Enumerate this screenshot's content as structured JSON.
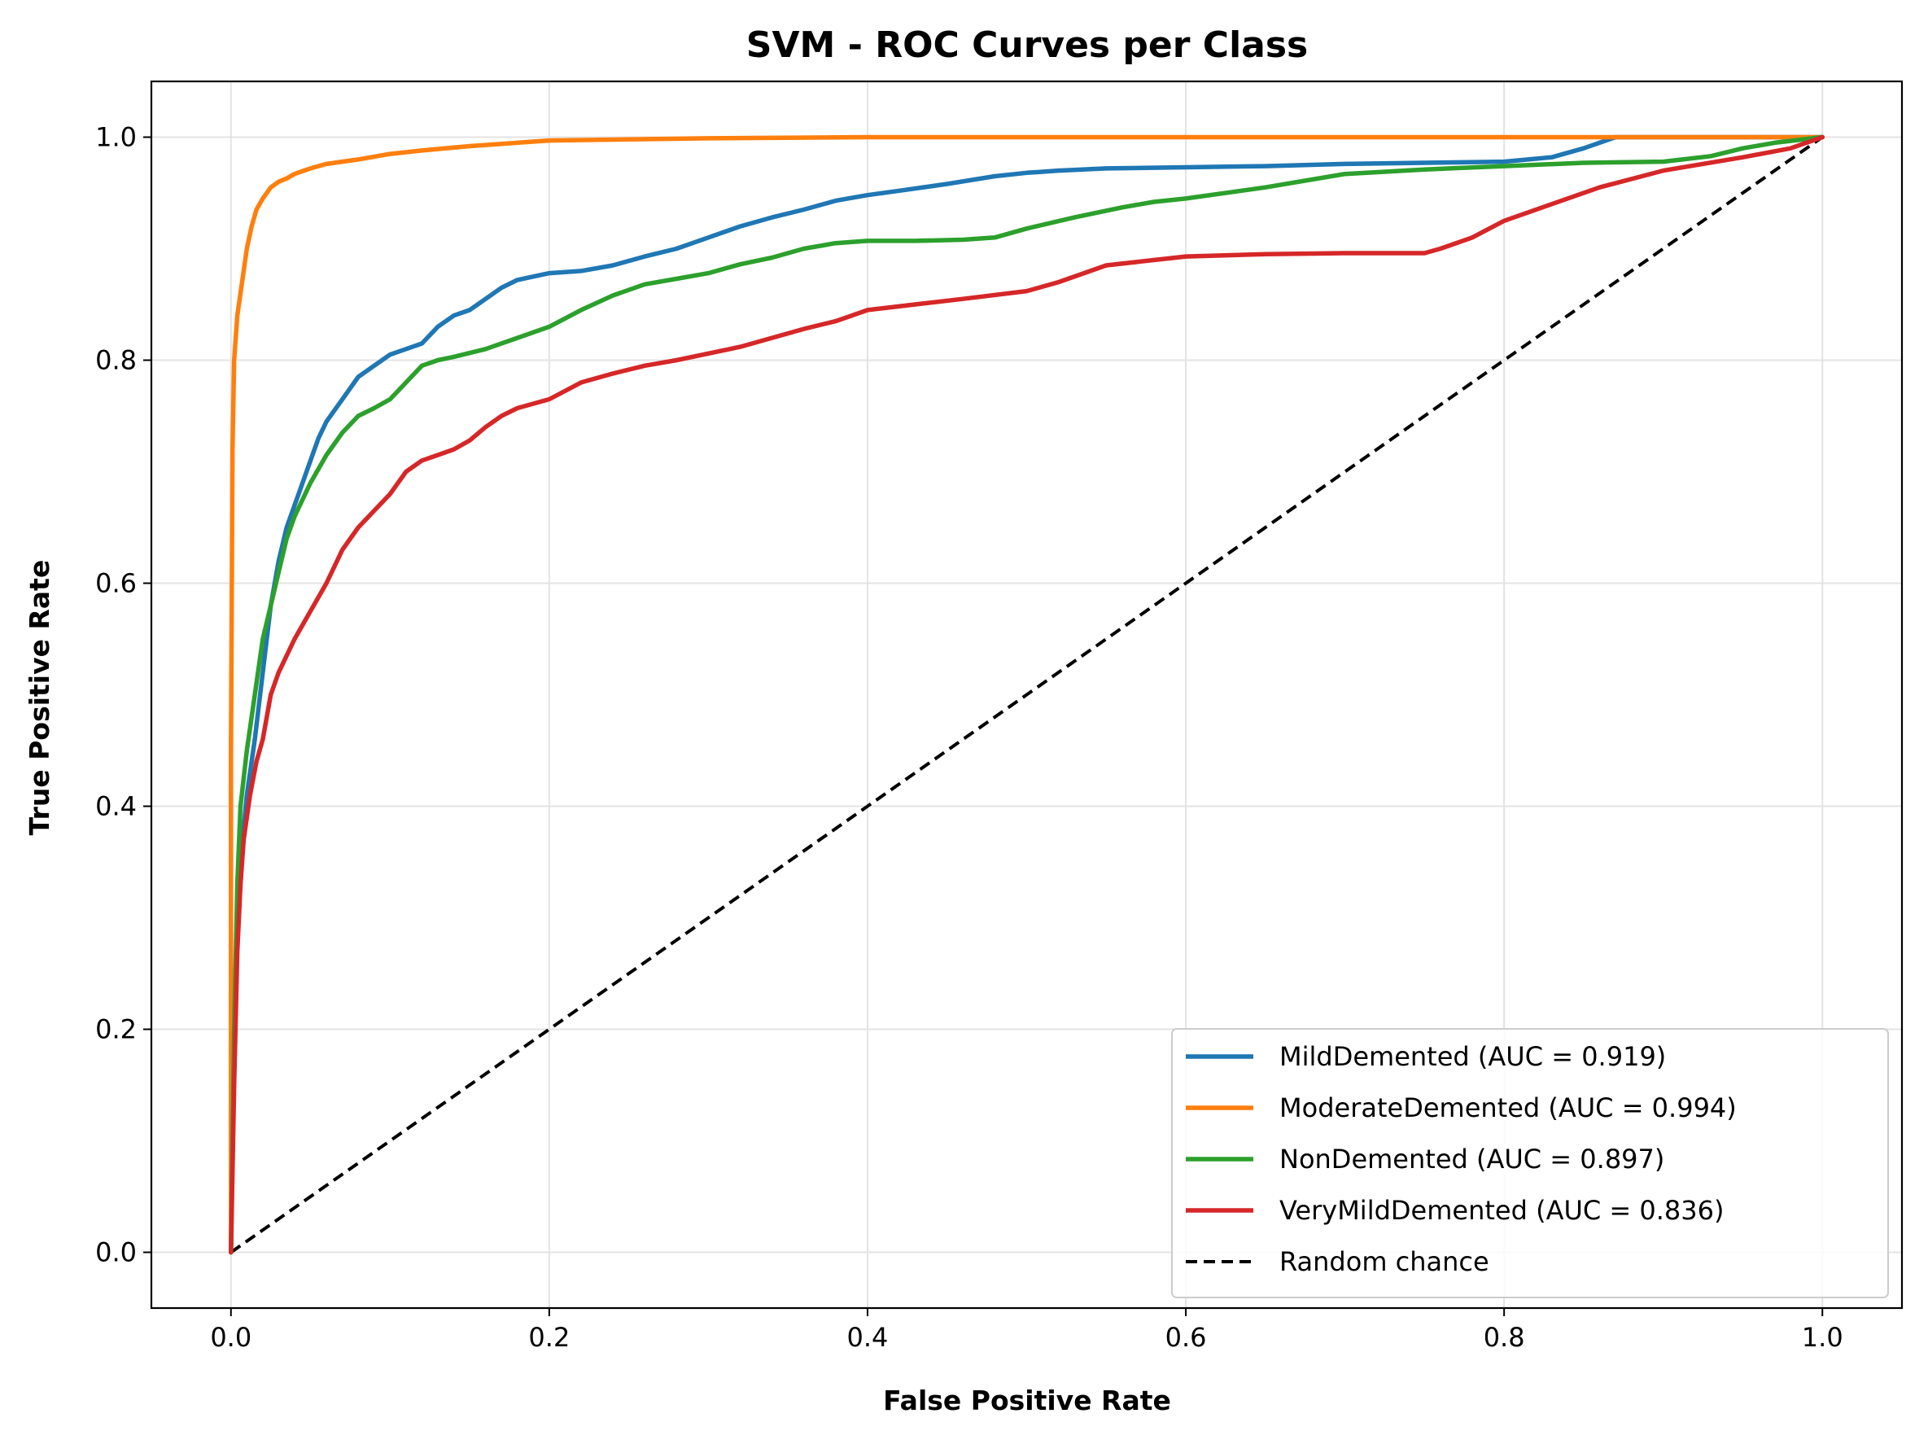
{
  "chart_data": {
    "type": "line",
    "title": "SVM - ROC Curves per Class",
    "xlabel": "False Positive Rate",
    "ylabel": "True Positive Rate",
    "xlim": [
      -0.05,
      1.05
    ],
    "ylim": [
      -0.05,
      1.05
    ],
    "xticks": [
      "0.0",
      "0.2",
      "0.4",
      "0.6",
      "0.8",
      "1.0"
    ],
    "yticks": [
      "0.0",
      "0.2",
      "0.4",
      "0.6",
      "0.8",
      "1.0"
    ],
    "grid": true,
    "legend_position": "lower-right",
    "series": [
      {
        "name": "MildDemented (AUC = 0.919)",
        "color": "#1f77b4",
        "x": [
          0,
          0.002,
          0.004,
          0.006,
          0.01,
          0.015,
          0.02,
          0.025,
          0.03,
          0.035,
          0.04,
          0.045,
          0.05,
          0.055,
          0.06,
          0.07,
          0.075,
          0.08,
          0.09,
          0.1,
          0.11,
          0.12,
          0.13,
          0.14,
          0.15,
          0.16,
          0.17,
          0.18,
          0.2,
          0.22,
          0.24,
          0.26,
          0.28,
          0.3,
          0.32,
          0.34,
          0.36,
          0.38,
          0.4,
          0.42,
          0.45,
          0.48,
          0.5,
          0.52,
          0.55,
          0.6,
          0.65,
          0.7,
          0.75,
          0.8,
          0.83,
          0.85,
          0.87,
          1.0
        ],
        "y": [
          0,
          0.2,
          0.3,
          0.35,
          0.41,
          0.46,
          0.52,
          0.58,
          0.62,
          0.65,
          0.67,
          0.69,
          0.71,
          0.73,
          0.745,
          0.765,
          0.775,
          0.785,
          0.795,
          0.805,
          0.81,
          0.815,
          0.83,
          0.84,
          0.845,
          0.855,
          0.865,
          0.872,
          0.878,
          0.88,
          0.885,
          0.893,
          0.9,
          0.91,
          0.92,
          0.928,
          0.935,
          0.943,
          0.948,
          0.952,
          0.958,
          0.965,
          0.968,
          0.97,
          0.972,
          0.973,
          0.974,
          0.976,
          0.977,
          0.978,
          0.982,
          0.99,
          1.0,
          1.0
        ]
      },
      {
        "name": "ModerateDemented (AUC = 0.994)",
        "color": "#ff7f0e",
        "x": [
          0,
          0.0,
          0.001,
          0.002,
          0.004,
          0.006,
          0.008,
          0.01,
          0.013,
          0.016,
          0.02,
          0.025,
          0.03,
          0.035,
          0.04,
          0.05,
          0.06,
          0.07,
          0.08,
          0.1,
          0.12,
          0.15,
          0.2,
          0.3,
          0.4,
          1.0
        ],
        "y": [
          0,
          0.45,
          0.72,
          0.8,
          0.84,
          0.86,
          0.88,
          0.9,
          0.92,
          0.935,
          0.945,
          0.955,
          0.96,
          0.963,
          0.967,
          0.972,
          0.976,
          0.978,
          0.98,
          0.985,
          0.988,
          0.992,
          0.997,
          0.999,
          1.0,
          1.0
        ]
      },
      {
        "name": "NonDemented (AUC = 0.897)",
        "color": "#2ca02c",
        "x": [
          0,
          0.002,
          0.004,
          0.006,
          0.01,
          0.015,
          0.02,
          0.025,
          0.03,
          0.035,
          0.04,
          0.05,
          0.06,
          0.07,
          0.08,
          0.09,
          0.1,
          0.11,
          0.12,
          0.13,
          0.14,
          0.16,
          0.18,
          0.2,
          0.22,
          0.24,
          0.26,
          0.28,
          0.3,
          0.32,
          0.34,
          0.36,
          0.38,
          0.4,
          0.43,
          0.46,
          0.48,
          0.5,
          0.53,
          0.56,
          0.58,
          0.6,
          0.65,
          0.7,
          0.75,
          0.8,
          0.85,
          0.9,
          0.93,
          0.95,
          0.97,
          1.0
        ],
        "y": [
          0,
          0.2,
          0.33,
          0.4,
          0.45,
          0.5,
          0.55,
          0.58,
          0.61,
          0.64,
          0.66,
          0.69,
          0.715,
          0.735,
          0.75,
          0.757,
          0.765,
          0.78,
          0.795,
          0.8,
          0.803,
          0.81,
          0.82,
          0.83,
          0.845,
          0.858,
          0.868,
          0.873,
          0.878,
          0.886,
          0.892,
          0.9,
          0.905,
          0.907,
          0.907,
          0.908,
          0.91,
          0.918,
          0.928,
          0.937,
          0.942,
          0.945,
          0.955,
          0.967,
          0.971,
          0.974,
          0.977,
          0.978,
          0.983,
          0.99,
          0.995,
          1.0
        ]
      },
      {
        "name": "VeryMildDemented (AUC = 0.836)",
        "color": "#d62728",
        "x": [
          0,
          0.002,
          0.004,
          0.006,
          0.008,
          0.012,
          0.016,
          0.02,
          0.025,
          0.03,
          0.04,
          0.05,
          0.06,
          0.07,
          0.08,
          0.09,
          0.1,
          0.11,
          0.12,
          0.13,
          0.14,
          0.15,
          0.16,
          0.17,
          0.18,
          0.2,
          0.22,
          0.24,
          0.26,
          0.28,
          0.3,
          0.32,
          0.34,
          0.36,
          0.38,
          0.4,
          0.43,
          0.46,
          0.5,
          0.52,
          0.55,
          0.6,
          0.65,
          0.7,
          0.75,
          0.76,
          0.78,
          0.8,
          0.83,
          0.86,
          0.9,
          0.95,
          0.98,
          1.0
        ],
        "y": [
          0,
          0.15,
          0.27,
          0.33,
          0.37,
          0.41,
          0.44,
          0.46,
          0.5,
          0.52,
          0.55,
          0.575,
          0.6,
          0.63,
          0.65,
          0.665,
          0.68,
          0.7,
          0.71,
          0.715,
          0.72,
          0.728,
          0.74,
          0.75,
          0.757,
          0.765,
          0.78,
          0.788,
          0.795,
          0.8,
          0.806,
          0.812,
          0.82,
          0.828,
          0.835,
          0.845,
          0.85,
          0.855,
          0.862,
          0.87,
          0.885,
          0.893,
          0.895,
          0.896,
          0.896,
          0.9,
          0.91,
          0.925,
          0.94,
          0.955,
          0.97,
          0.982,
          0.99,
          1.0
        ]
      },
      {
        "name": "Random chance",
        "color": "#000000",
        "dashed": true,
        "x": [
          0,
          1
        ],
        "y": [
          0,
          1
        ]
      }
    ]
  }
}
